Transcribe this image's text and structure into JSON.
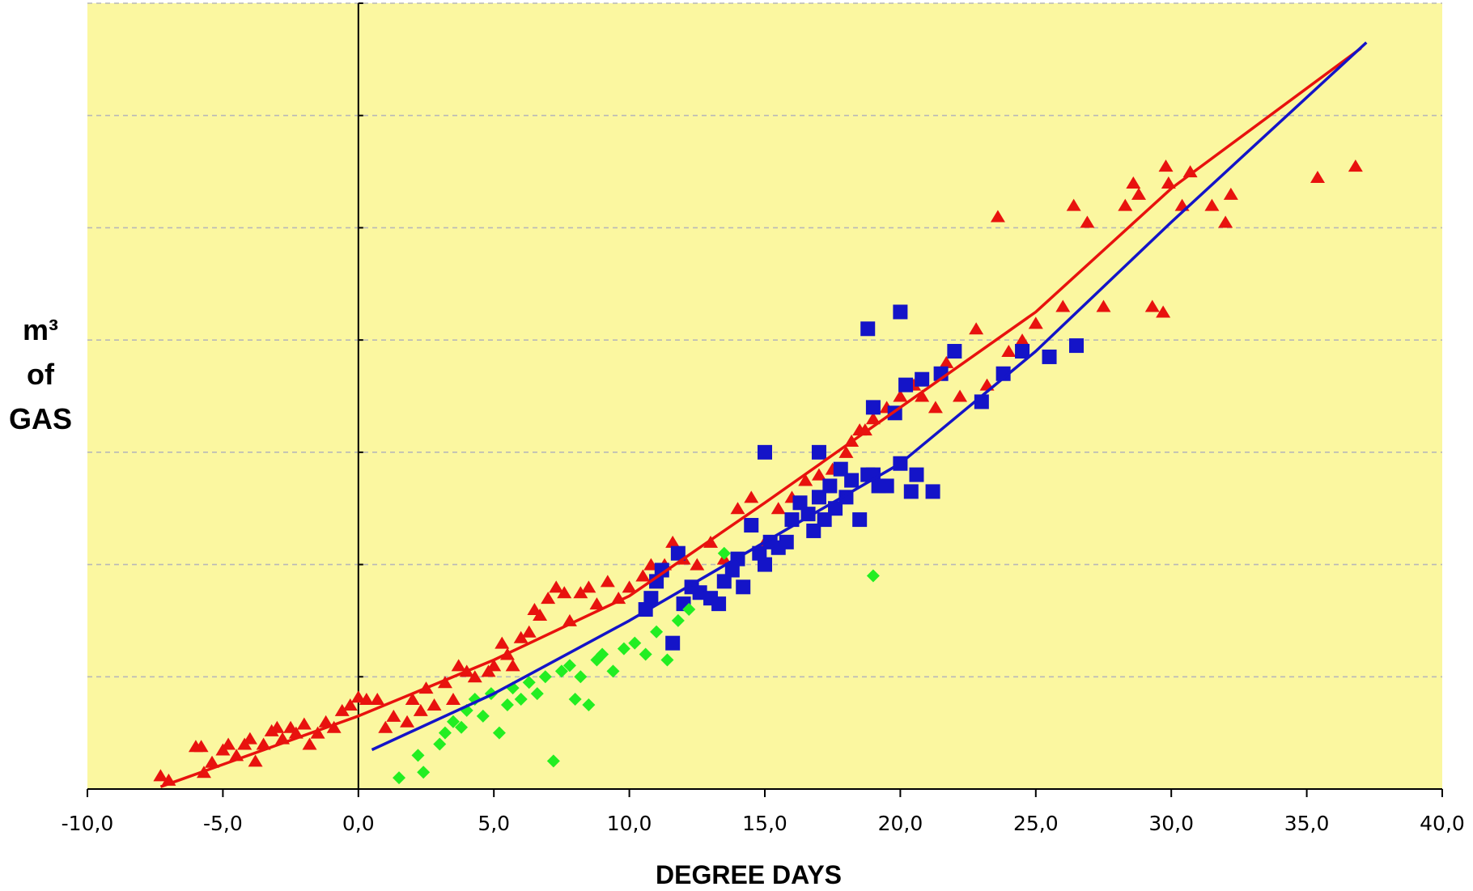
{
  "chart_data": {
    "type": "scatter",
    "title": "",
    "xlabel": "DEGREE DAYS",
    "ylabel_lines": [
      "m³",
      "of",
      "GAS"
    ],
    "xlim": [
      -10,
      40
    ],
    "ylim": [
      0,
      7
    ],
    "x_ticks": [
      "-10,0",
      "-5,0",
      "0,0",
      "5,0",
      "10,0",
      "15,0",
      "20,0",
      "25,0",
      "30,0",
      "35,0",
      "40,0"
    ],
    "y_tick_values": [
      0,
      1,
      2,
      3,
      4,
      5,
      6,
      7
    ],
    "y_tick_labels_shown": false,
    "grid": "horizontal-dashed",
    "legend": "none",
    "colors": {
      "plot_background": "#FBF7A0",
      "triangles": "#E8120E",
      "squares": "#1414C8",
      "diamonds": "#22EE22",
      "red_fit": "#E8120E",
      "blue_fit": "#1414C8",
      "grid": "#B8B8B8"
    },
    "series": [
      {
        "marker": "triangle",
        "color": "#E8120E",
        "points": [
          [
            -7.3,
            0.12
          ],
          [
            -7.0,
            0.08
          ],
          [
            -6.0,
            0.38
          ],
          [
            -5.8,
            0.38
          ],
          [
            -5.7,
            0.15
          ],
          [
            -5.4,
            0.24
          ],
          [
            -5.0,
            0.35
          ],
          [
            -4.8,
            0.4
          ],
          [
            -4.5,
            0.3
          ],
          [
            -4.2,
            0.4
          ],
          [
            -4.0,
            0.45
          ],
          [
            -3.8,
            0.25
          ],
          [
            -3.5,
            0.4
          ],
          [
            -3.2,
            0.52
          ],
          [
            -3.0,
            0.55
          ],
          [
            -2.8,
            0.45
          ],
          [
            -2.5,
            0.55
          ],
          [
            -2.3,
            0.5
          ],
          [
            -2.0,
            0.58
          ],
          [
            -1.8,
            0.4
          ],
          [
            -1.5,
            0.5
          ],
          [
            -1.2,
            0.6
          ],
          [
            -0.9,
            0.55
          ],
          [
            -0.6,
            0.7
          ],
          [
            -0.3,
            0.75
          ],
          [
            0.0,
            0.82
          ],
          [
            0.3,
            0.8
          ],
          [
            0.7,
            0.8
          ],
          [
            1.0,
            0.55
          ],
          [
            1.3,
            0.65
          ],
          [
            1.8,
            0.6
          ],
          [
            2.0,
            0.8
          ],
          [
            2.3,
            0.7
          ],
          [
            2.5,
            0.9
          ],
          [
            2.8,
            0.75
          ],
          [
            3.2,
            0.95
          ],
          [
            3.5,
            0.8
          ],
          [
            3.7,
            1.1
          ],
          [
            4.0,
            1.05
          ],
          [
            4.3,
            1.0
          ],
          [
            4.8,
            1.05
          ],
          [
            5.0,
            1.1
          ],
          [
            5.3,
            1.3
          ],
          [
            5.5,
            1.2
          ],
          [
            5.7,
            1.1
          ],
          [
            6.0,
            1.35
          ],
          [
            6.3,
            1.4
          ],
          [
            6.5,
            1.6
          ],
          [
            6.7,
            1.55
          ],
          [
            7.0,
            1.7
          ],
          [
            7.3,
            1.8
          ],
          [
            7.6,
            1.75
          ],
          [
            7.8,
            1.5
          ],
          [
            8.2,
            1.75
          ],
          [
            8.5,
            1.8
          ],
          [
            8.8,
            1.65
          ],
          [
            9.2,
            1.85
          ],
          [
            9.6,
            1.7
          ],
          [
            10.0,
            1.8
          ],
          [
            10.5,
            1.9
          ],
          [
            10.8,
            2.0
          ],
          [
            11.3,
            2.0
          ],
          [
            11.6,
            2.2
          ],
          [
            12.0,
            2.05
          ],
          [
            12.5,
            2.0
          ],
          [
            13.0,
            2.2
          ],
          [
            13.5,
            2.05
          ],
          [
            14.0,
            2.5
          ],
          [
            14.5,
            2.6
          ],
          [
            15.0,
            2.2
          ],
          [
            15.5,
            2.5
          ],
          [
            16.0,
            2.6
          ],
          [
            16.5,
            2.75
          ],
          [
            17.0,
            2.8
          ],
          [
            17.5,
            2.85
          ],
          [
            18.0,
            3.0
          ],
          [
            18.2,
            3.1
          ],
          [
            18.5,
            3.2
          ],
          [
            18.7,
            3.2
          ],
          [
            19.0,
            3.3
          ],
          [
            19.5,
            3.4
          ],
          [
            20.0,
            3.5
          ],
          [
            20.5,
            3.6
          ],
          [
            20.8,
            3.5
          ],
          [
            21.3,
            3.4
          ],
          [
            21.7,
            3.8
          ],
          [
            22.2,
            3.5
          ],
          [
            22.8,
            4.1
          ],
          [
            23.2,
            3.6
          ],
          [
            23.6,
            5.1
          ],
          [
            24.0,
            3.9
          ],
          [
            24.5,
            4.0
          ],
          [
            25.0,
            4.15
          ],
          [
            25.5,
            3.85
          ],
          [
            26.0,
            4.3
          ],
          [
            26.4,
            5.2
          ],
          [
            26.9,
            5.05
          ],
          [
            27.5,
            4.3
          ],
          [
            28.3,
            5.2
          ],
          [
            28.6,
            5.4
          ],
          [
            28.8,
            5.3
          ],
          [
            29.3,
            4.3
          ],
          [
            29.7,
            4.25
          ],
          [
            29.8,
            5.55
          ],
          [
            29.9,
            5.4
          ],
          [
            30.4,
            5.2
          ],
          [
            30.7,
            5.5
          ],
          [
            31.5,
            5.2
          ],
          [
            32.0,
            5.05
          ],
          [
            32.2,
            5.3
          ],
          [
            35.4,
            5.45
          ],
          [
            36.8,
            5.55
          ]
        ]
      },
      {
        "marker": "square",
        "color": "#1414C8",
        "points": [
          [
            10.6,
            1.6
          ],
          [
            10.8,
            1.7
          ],
          [
            11.0,
            1.85
          ],
          [
            11.2,
            1.95
          ],
          [
            11.6,
            1.3
          ],
          [
            11.8,
            2.1
          ],
          [
            12.0,
            1.65
          ],
          [
            12.3,
            1.8
          ],
          [
            12.6,
            1.75
          ],
          [
            13.0,
            1.7
          ],
          [
            13.3,
            1.65
          ],
          [
            13.5,
            1.85
          ],
          [
            13.8,
            1.95
          ],
          [
            14.0,
            2.05
          ],
          [
            14.2,
            1.8
          ],
          [
            14.5,
            2.35
          ],
          [
            14.8,
            2.1
          ],
          [
            15.0,
            2.0
          ],
          [
            15.2,
            2.2
          ],
          [
            15.5,
            2.15
          ],
          [
            15.8,
            2.2
          ],
          [
            16.0,
            2.4
          ],
          [
            16.3,
            2.55
          ],
          [
            16.6,
            2.45
          ],
          [
            16.8,
            2.3
          ],
          [
            17.0,
            2.6
          ],
          [
            17.2,
            2.4
          ],
          [
            17.4,
            2.7
          ],
          [
            17.6,
            2.5
          ],
          [
            17.8,
            2.85
          ],
          [
            18.0,
            2.6
          ],
          [
            18.2,
            2.75
          ],
          [
            18.5,
            2.4
          ],
          [
            18.8,
            2.8
          ],
          [
            19.0,
            2.8
          ],
          [
            19.2,
            2.7
          ],
          [
            19.5,
            2.7
          ],
          [
            19.8,
            3.35
          ],
          [
            20.0,
            2.9
          ],
          [
            20.2,
            3.6
          ],
          [
            20.4,
            2.65
          ],
          [
            20.6,
            2.8
          ],
          [
            20.8,
            3.65
          ],
          [
            21.2,
            2.65
          ],
          [
            21.5,
            3.7
          ],
          [
            22.0,
            3.9
          ],
          [
            23.0,
            3.45
          ],
          [
            23.8,
            3.7
          ],
          [
            24.5,
            3.9
          ],
          [
            25.5,
            3.85
          ],
          [
            26.5,
            3.95
          ],
          [
            15.0,
            3.0
          ],
          [
            17.0,
            3.0
          ],
          [
            19.0,
            3.4
          ],
          [
            20.0,
            4.25
          ],
          [
            18.8,
            4.1
          ]
        ]
      },
      {
        "marker": "diamond",
        "color": "#22EE22",
        "points": [
          [
            1.5,
            0.1
          ],
          [
            2.2,
            0.3
          ],
          [
            2.4,
            0.15
          ],
          [
            3.0,
            0.4
          ],
          [
            3.2,
            0.5
          ],
          [
            3.5,
            0.6
          ],
          [
            3.8,
            0.55
          ],
          [
            4.0,
            0.7
          ],
          [
            4.3,
            0.8
          ],
          [
            4.6,
            0.65
          ],
          [
            4.9,
            0.85
          ],
          [
            5.2,
            0.5
          ],
          [
            5.5,
            0.75
          ],
          [
            5.7,
            0.9
          ],
          [
            6.0,
            0.8
          ],
          [
            6.3,
            0.95
          ],
          [
            6.6,
            0.85
          ],
          [
            6.9,
            1.0
          ],
          [
            7.2,
            0.25
          ],
          [
            7.5,
            1.05
          ],
          [
            7.8,
            1.1
          ],
          [
            8.0,
            0.8
          ],
          [
            8.2,
            1.0
          ],
          [
            8.5,
            0.75
          ],
          [
            8.8,
            1.15
          ],
          [
            9.0,
            1.2
          ],
          [
            9.4,
            1.05
          ],
          [
            9.8,
            1.25
          ],
          [
            10.2,
            1.3
          ],
          [
            10.6,
            1.2
          ],
          [
            11.0,
            1.4
          ],
          [
            11.4,
            1.15
          ],
          [
            11.8,
            1.5
          ],
          [
            12.2,
            1.6
          ],
          [
            13.5,
            2.1
          ],
          [
            19.0,
            1.9
          ]
        ]
      }
    ],
    "fit_lines": [
      {
        "color": "#E8120E",
        "points": [
          [
            -7.3,
            0.02
          ],
          [
            0,
            0.65
          ],
          [
            5,
            1.15
          ],
          [
            10,
            1.72
          ],
          [
            15,
            2.55
          ],
          [
            20,
            3.4
          ],
          [
            25,
            4.25
          ],
          [
            30,
            5.35
          ],
          [
            37,
            6.6
          ]
        ]
      },
      {
        "color": "#1414C8",
        "points": [
          [
            0.5,
            0.35
          ],
          [
            5,
            0.85
          ],
          [
            10,
            1.5
          ],
          [
            15,
            2.2
          ],
          [
            20,
            2.9
          ],
          [
            25,
            3.9
          ],
          [
            30,
            5.05
          ],
          [
            37.2,
            6.65
          ]
        ]
      }
    ]
  }
}
